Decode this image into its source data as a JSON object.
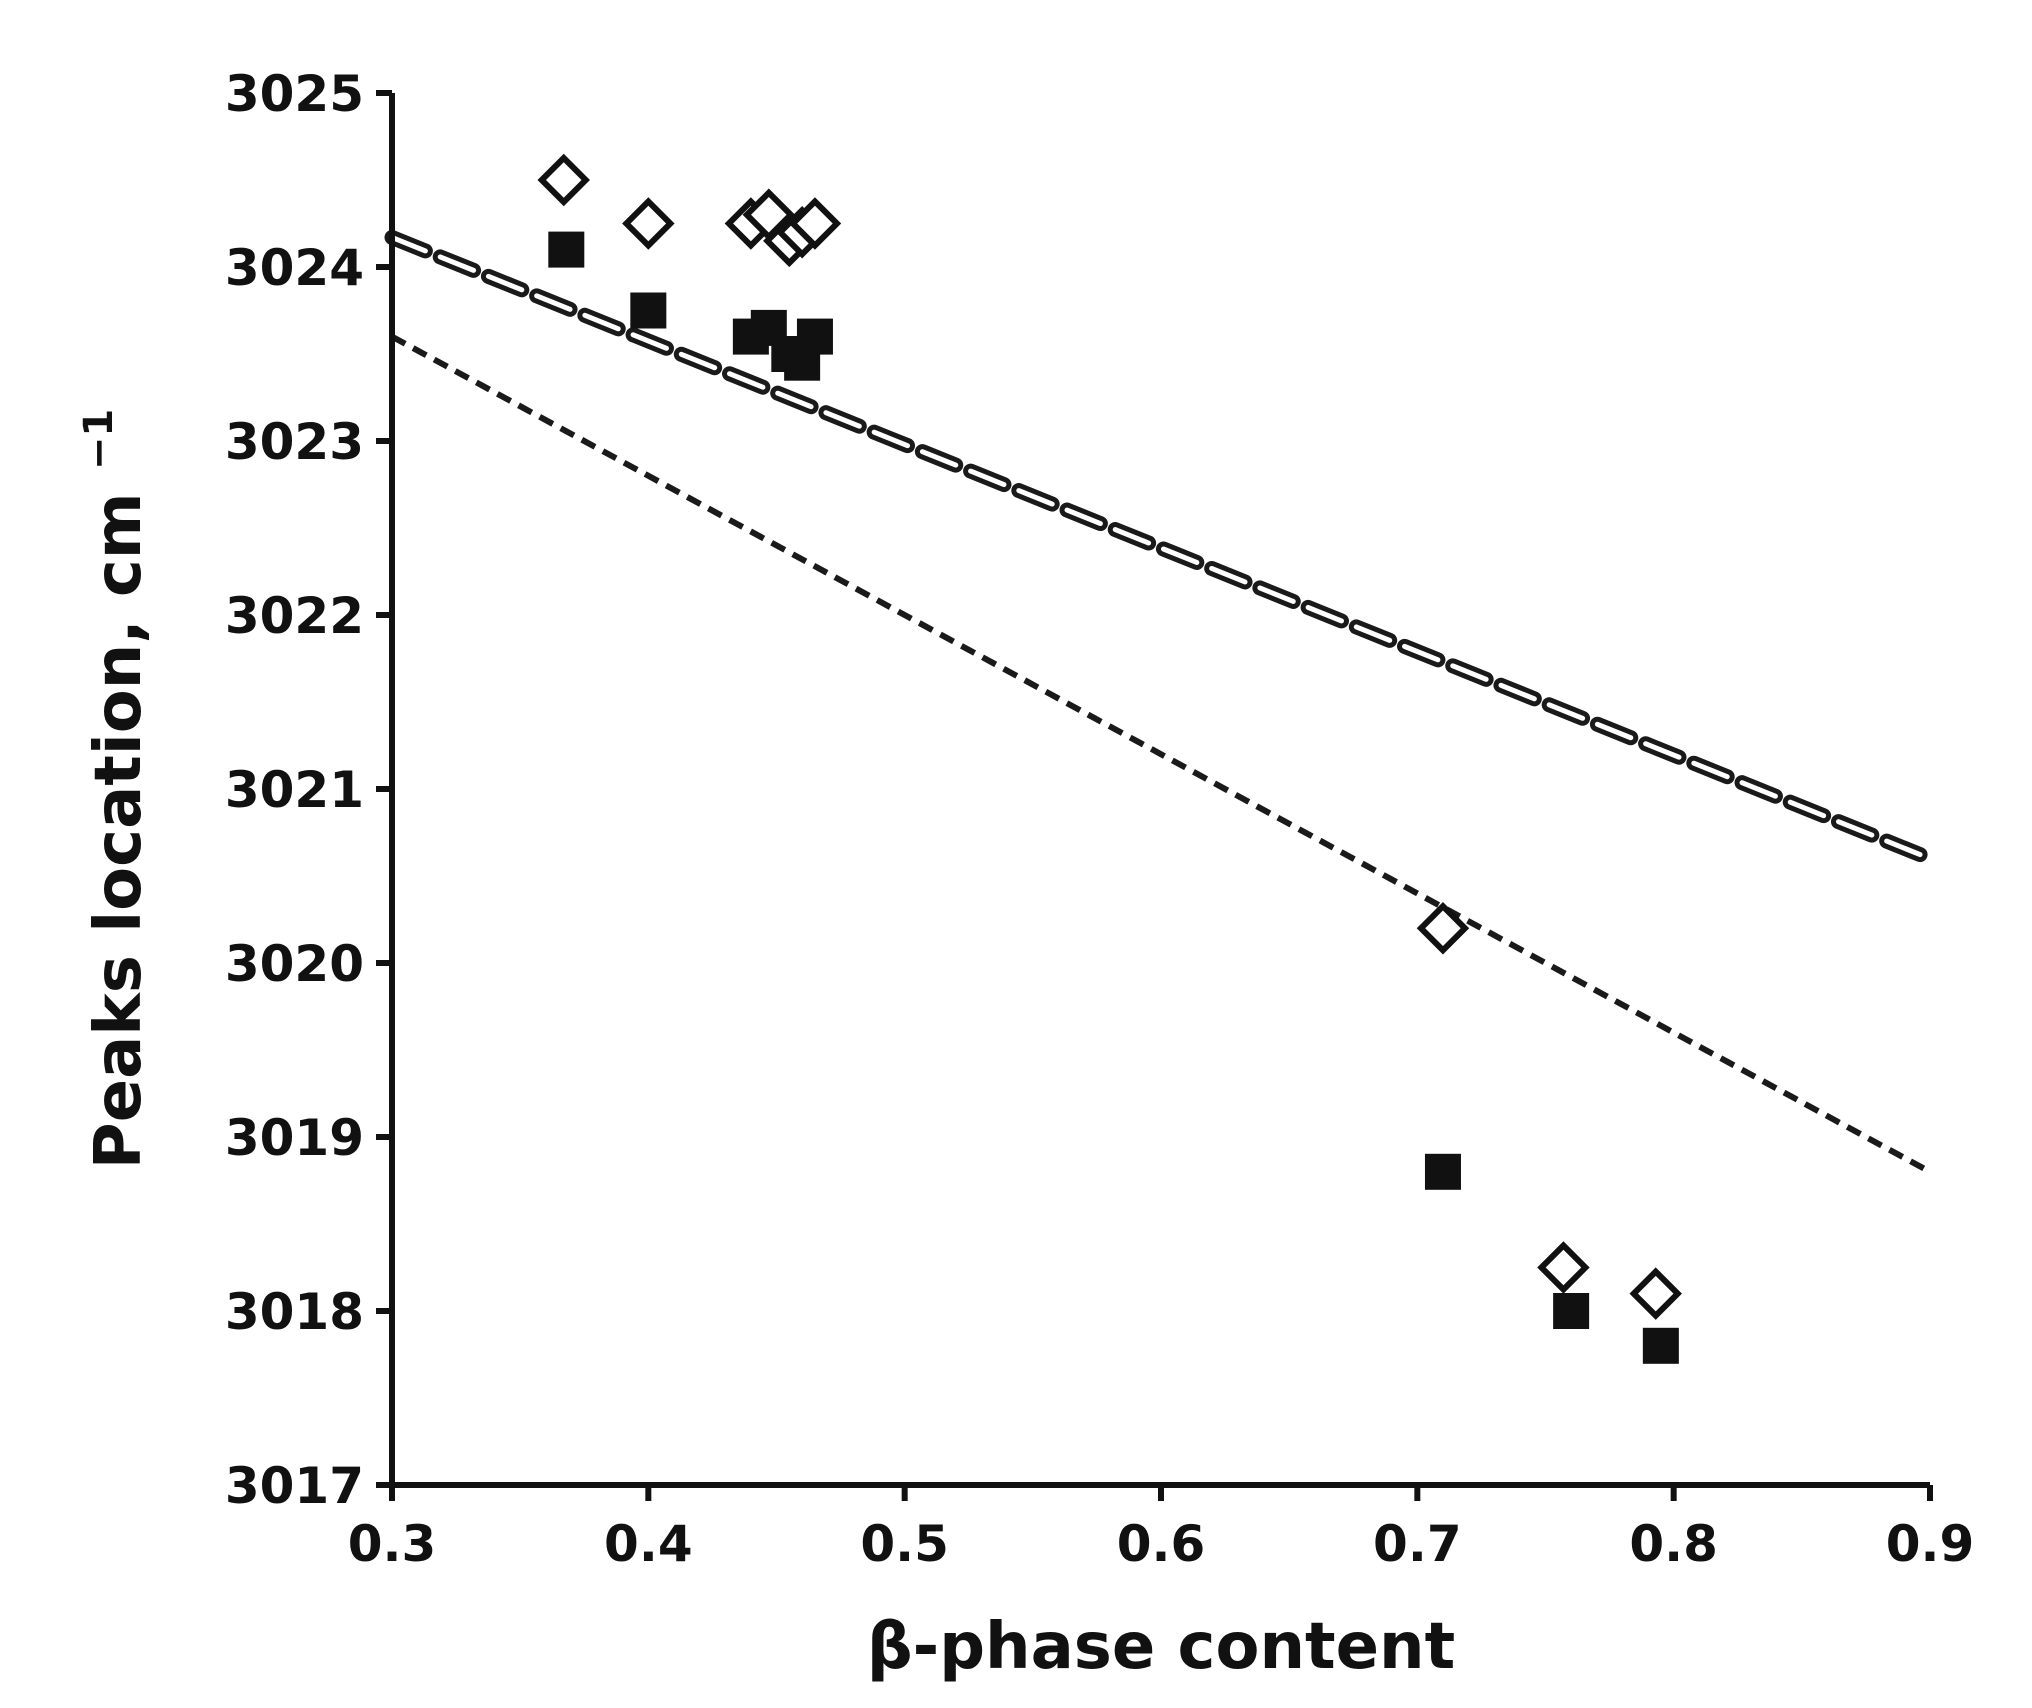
{
  "chart_data": {
    "type": "scatter",
    "xlabel": "β-phase content",
    "ylabel": "Peaks location, cm",
    "ylabel_superscript": "−1",
    "xlim": [
      0.3,
      0.9
    ],
    "ylim": [
      3017,
      3025
    ],
    "xticks": [
      "0.3",
      "0.4",
      "0.5",
      "0.6",
      "0.7",
      "0.8",
      "0.9"
    ],
    "yticks": [
      "3017",
      "3018",
      "3019",
      "3020",
      "3021",
      "3022",
      "3023",
      "3024",
      "3025"
    ],
    "grid": false,
    "legend": "none",
    "series": [
      {
        "marker": "open-diamond",
        "color": "#111111",
        "x": [
          0.367,
          0.4,
          0.44,
          0.447,
          0.455,
          0.46,
          0.465,
          0.71,
          0.757,
          0.793
        ],
        "y": [
          3024.5,
          3024.25,
          3024.25,
          3024.3,
          3024.15,
          3024.2,
          3024.25,
          3020.2,
          3018.25,
          3018.1
        ]
      },
      {
        "marker": "filled-square",
        "color": "#111111",
        "x": [
          0.368,
          0.4,
          0.44,
          0.447,
          0.455,
          0.46,
          0.465,
          0.71,
          0.76,
          0.795
        ],
        "y": [
          3024.1,
          3023.75,
          3023.6,
          3023.65,
          3023.5,
          3023.45,
          3023.6,
          3018.8,
          3018.0,
          3017.8
        ]
      }
    ],
    "trendlines": [
      {
        "style": "outlined-dashed",
        "x": [
          0.3,
          0.9
        ],
        "y": [
          3024.17,
          3020.6
        ]
      },
      {
        "style": "dashed",
        "x": [
          0.3,
          0.9
        ],
        "y": [
          3023.6,
          3018.8
        ]
      }
    ]
  }
}
